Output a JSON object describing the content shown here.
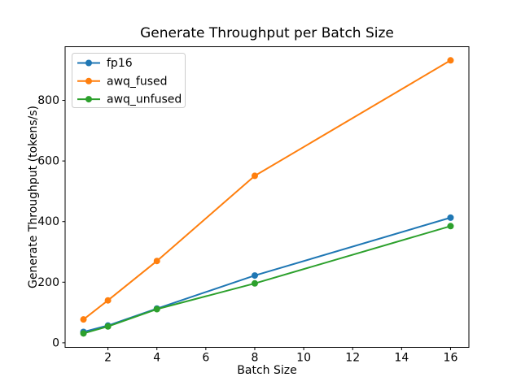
{
  "chart_data": {
    "type": "line",
    "title": "Generate Throughput per Batch Size",
    "xlabel": "Batch Size",
    "ylabel": "Generate Throughput (tokens/s)",
    "x": [
      1,
      2,
      4,
      8,
      16
    ],
    "series": [
      {
        "name": "fp16",
        "color": "#1f77b4",
        "values": [
          36,
          57,
          113,
          222,
          413
        ]
      },
      {
        "name": "awq_fused",
        "color": "#ff7f0e",
        "values": [
          77,
          140,
          270,
          551,
          932
        ]
      },
      {
        "name": "awq_unfused",
        "color": "#2ca02c",
        "values": [
          31,
          54,
          111,
          196,
          385
        ]
      }
    ],
    "xlim": [
      0.25,
      16.75
    ],
    "ylim": [
      -15,
      977
    ],
    "xticks": [
      2,
      4,
      6,
      8,
      10,
      12,
      14,
      16
    ],
    "yticks": [
      0,
      200,
      400,
      600,
      800
    ],
    "grid": false,
    "legend_position": "upper left",
    "marker": "circle",
    "line_width": 2,
    "marker_radius": 4,
    "background_color": "#ffffff",
    "spine_color": "#000000",
    "legend_border_color": "#cccccc"
  }
}
